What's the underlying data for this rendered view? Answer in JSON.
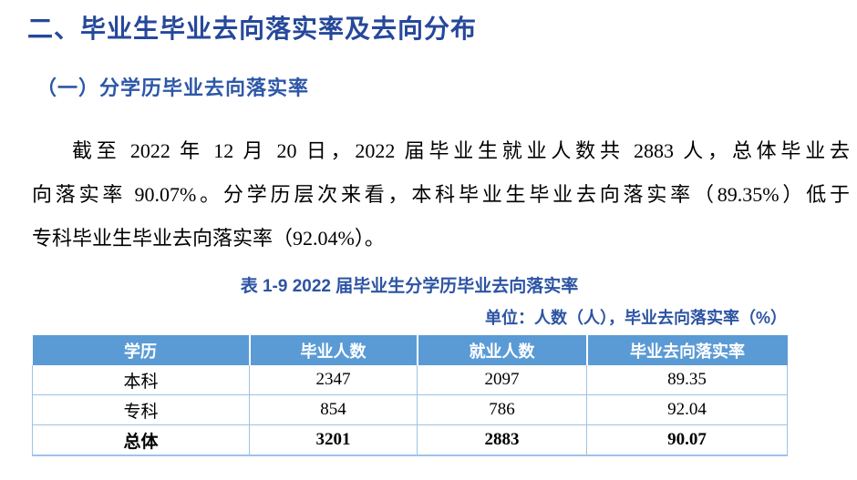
{
  "colors": {
    "heading_blue": "#26489B",
    "subheading_blue": "#2D57A7",
    "table_title_blue": "#2C53A3",
    "table_header_bg": "#5B9BD5",
    "table_header_text": "#FFFFFF",
    "table_border": "#9DC3E6",
    "body_text": "#000000",
    "page_background": "#FFFFFF"
  },
  "heading": "二、毕业生毕业去向落实率及去向分布",
  "subheading": "（一）分学历毕业去向落实率",
  "paragraph": {
    "full_text": "截至 2022 年 12 月 20 日，2022 届毕业生就业人数共 2883 人，总体毕业去向落实率 90.07%。分学历层次来看，本科毕业生毕业去向落实率（89.35%）低于专科毕业生毕业去向落实率（92.04%）。",
    "lines": [
      "截至 2022 年 12 月 20 日，2022 届毕业生就业人数共 2883 人，总体毕业去",
      "向落实率 90.07%。分学历层次来看，本科毕业生毕业去向落实率（89.35%）低于",
      "专科毕业生毕业去向落实率（92.04%）。"
    ]
  },
  "table": {
    "title": "表 1-9 2022 届毕业生分学历毕业去向落实率",
    "unit_note": "单位：人数（人），毕业去向落实率（%）",
    "columns": [
      "学历",
      "毕业人数",
      "就业人数",
      "毕业去向落实率"
    ],
    "rows": [
      {
        "cells": [
          "本科",
          "2347",
          "2097",
          "89.35"
        ]
      },
      {
        "cells": [
          "专科",
          "854",
          "786",
          "92.04"
        ]
      },
      {
        "cells": [
          "总体",
          "3201",
          "2883",
          "90.07"
        ]
      }
    ]
  }
}
